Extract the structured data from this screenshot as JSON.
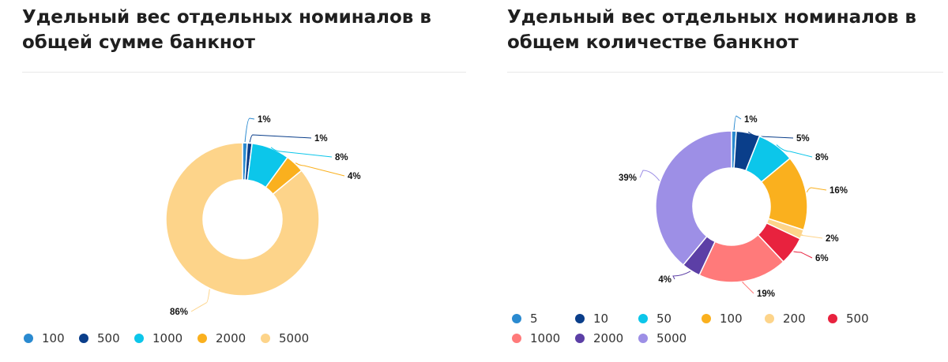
{
  "chart_data": [
    {
      "type": "pie",
      "title": "Удельный вес отдельных номиналов в общей сумме банкнот",
      "categories": [
        "100",
        "500",
        "1000",
        "2000",
        "5000"
      ],
      "values": [
        1,
        1,
        8,
        4,
        86
      ],
      "labels": [
        "1%",
        "1%",
        "8%",
        "4%",
        "86%"
      ],
      "colors": [
        "#2a8ad0",
        "#0a3e8a",
        "#0cc6ea",
        "#fab01e",
        "#fdd48a"
      ],
      "legend_position": "bottom"
    },
    {
      "type": "pie",
      "title": "Удельный вес отдельных номиналов в общем количестве банкнот",
      "categories": [
        "5",
        "10",
        "50",
        "100",
        "200",
        "500",
        "1000",
        "2000",
        "5000"
      ],
      "values": [
        1,
        5,
        8,
        16,
        2,
        6,
        19,
        4,
        39
      ],
      "labels": [
        "1%",
        "5%",
        "8%",
        "16%",
        "2%",
        "6%",
        "19%",
        "4%",
        "39%"
      ],
      "colors": [
        "#2a8ad0",
        "#0a3e8a",
        "#0cc6ea",
        "#fab01e",
        "#fdd48a",
        "#e8223e",
        "#ff7a7a",
        "#5c3fa6",
        "#9d8fe6"
      ],
      "legend_position": "bottom"
    }
  ]
}
